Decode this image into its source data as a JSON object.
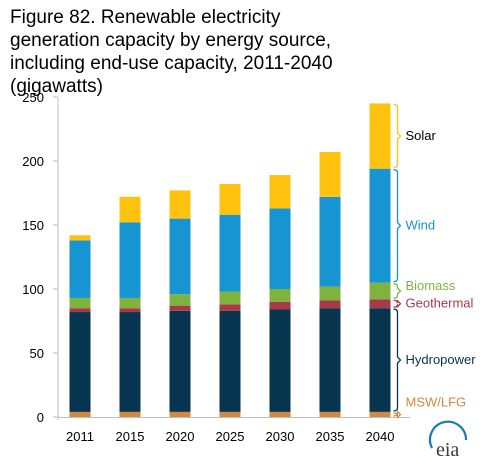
{
  "title": "Figure 82. Renewable electricity generation capacity by energy source, including end-use capacity, 2011-2040 (gigawatts)",
  "logo_text": "eia",
  "chart_data": {
    "type": "bar",
    "stacked": true,
    "categories": [
      "2011",
      "2015",
      "2020",
      "2025",
      "2030",
      "2035",
      "2040"
    ],
    "ylim": [
      0,
      250
    ],
    "yticks": [
      0,
      50,
      100,
      150,
      200,
      250
    ],
    "grid": false,
    "legend": "right, labels beside last bar",
    "series": [
      {
        "name": "MSW/LFG",
        "color": "#d2893f",
        "values": [
          4,
          4,
          4,
          4,
          4,
          4,
          4
        ]
      },
      {
        "name": "Hydropower",
        "color": "#07344e",
        "values": [
          78,
          78,
          79,
          79,
          80,
          81,
          81
        ]
      },
      {
        "name": "Geothermal",
        "color": "#a83a48",
        "values": [
          3,
          3,
          4,
          5,
          6,
          6,
          7
        ]
      },
      {
        "name": "Biomass",
        "color": "#7fb33f",
        "values": [
          8,
          8,
          9,
          10,
          10,
          11,
          13
        ]
      },
      {
        "name": "Wind",
        "color": "#1695d2",
        "values": [
          45,
          59,
          59,
          60,
          63,
          70,
          89
        ]
      },
      {
        "name": "Solar",
        "color": "#ffc20e",
        "values": [
          4,
          20,
          22,
          24,
          26,
          35,
          51
        ]
      }
    ]
  }
}
